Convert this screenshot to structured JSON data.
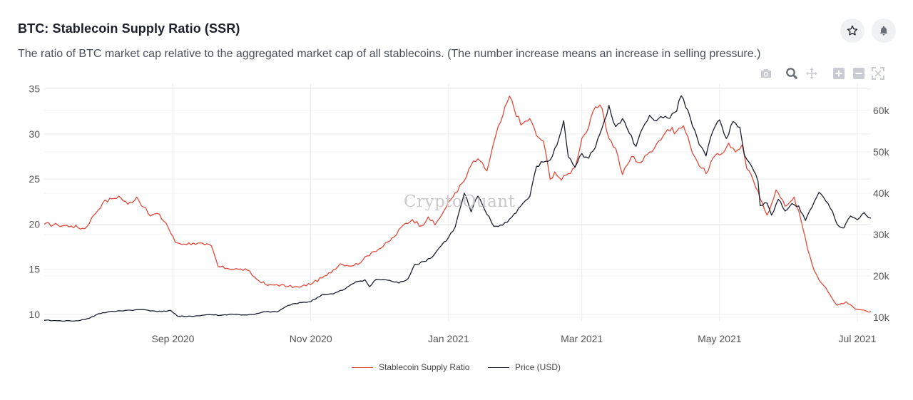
{
  "header": {
    "title": "BTC: Stablecoin Supply Ratio (SSR)",
    "subtitle": "The ratio of BTC market cap relative to the aggregated market cap of all stablecoins. (The number increase means an increase in selling pressure.)"
  },
  "watermark": "CryptoQuant",
  "icons": {
    "favorite": "star-icon",
    "alert": "bell-icon",
    "modebar": [
      "camera-icon",
      "zoom-icon",
      "pan-icon",
      "zoom-in-icon",
      "zoom-out-icon",
      "autoscale-icon"
    ]
  },
  "colors": {
    "ssr": "#e2493a",
    "price": "#1b1f2e",
    "grid": "#ececec",
    "modebar_inactive": "#c9ccd2",
    "modebar_active": "#6b6f78"
  },
  "chart_data": {
    "type": "line",
    "x_ticks": [
      {
        "date": "2020-09-01",
        "label": "Sep 2020"
      },
      {
        "date": "2020-11-01",
        "label": "Nov 2020"
      },
      {
        "date": "2021-01-01",
        "label": "Jan 2021"
      },
      {
        "date": "2021-03-01",
        "label": "Mar 2021"
      },
      {
        "date": "2021-05-01",
        "label": "May 2021"
      },
      {
        "date": "2021-07-01",
        "label": "Jul 2021"
      }
    ],
    "xlim": [
      "2020-07-06",
      "2021-07-07"
    ],
    "y_left": {
      "range": [
        9.2,
        35.6
      ],
      "ticks": [
        10,
        15,
        20,
        25,
        30,
        35
      ],
      "tick_labels": [
        "10",
        "15",
        "20",
        "25",
        "30",
        "35"
      ]
    },
    "y_right": {
      "range": [
        9000,
        66500
      ],
      "ticks": [
        10000,
        20000,
        30000,
        40000,
        50000,
        60000
      ],
      "tick_labels": [
        "10k",
        "20k",
        "30k",
        "40k",
        "50k",
        "60k"
      ]
    },
    "grid": true,
    "legend_position": "bottom-center",
    "series": [
      {
        "name": "Stablecoin Supply Ratio",
        "axis": "left",
        "points": [
          [
            "2020-07-06",
            20.0
          ],
          [
            "2020-07-12",
            19.9
          ],
          [
            "2020-07-18",
            19.8
          ],
          [
            "2020-07-24",
            19.5
          ],
          [
            "2020-07-28",
            21.0
          ],
          [
            "2020-08-01",
            22.4
          ],
          [
            "2020-08-05",
            22.8
          ],
          [
            "2020-08-08",
            23.1
          ],
          [
            "2020-08-12",
            22.2
          ],
          [
            "2020-08-16",
            23.0
          ],
          [
            "2020-08-19",
            21.9
          ],
          [
            "2020-08-22",
            20.9
          ],
          [
            "2020-08-25",
            21.2
          ],
          [
            "2020-08-29",
            20.1
          ],
          [
            "2020-09-02",
            18.0
          ],
          [
            "2020-09-06",
            17.8
          ],
          [
            "2020-09-10",
            17.9
          ],
          [
            "2020-09-15",
            17.7
          ],
          [
            "2020-09-18",
            17.6
          ],
          [
            "2020-09-21",
            15.3
          ],
          [
            "2020-09-25",
            15.1
          ],
          [
            "2020-09-30",
            15.0
          ],
          [
            "2020-10-04",
            14.9
          ],
          [
            "2020-10-08",
            13.9
          ],
          [
            "2020-10-13",
            13.2
          ],
          [
            "2020-10-17",
            13.3
          ],
          [
            "2020-10-22",
            13.1
          ],
          [
            "2020-10-27",
            13.0
          ],
          [
            "2020-11-02",
            13.5
          ],
          [
            "2020-11-08",
            14.3
          ],
          [
            "2020-11-14",
            15.6
          ],
          [
            "2020-11-20",
            15.4
          ],
          [
            "2020-11-24",
            16.0
          ],
          [
            "2020-11-28",
            16.9
          ],
          [
            "2020-12-03",
            17.5
          ],
          [
            "2020-12-08",
            18.6
          ],
          [
            "2020-12-12",
            19.9
          ],
          [
            "2020-12-16",
            20.5
          ],
          [
            "2020-12-20",
            19.8
          ],
          [
            "2020-12-23",
            20.8
          ],
          [
            "2020-12-26",
            19.9
          ],
          [
            "2020-12-30",
            21.5
          ],
          [
            "2021-01-04",
            23.5
          ],
          [
            "2021-01-08",
            24.8
          ],
          [
            "2021-01-12",
            27.0
          ],
          [
            "2021-01-15",
            27.0
          ],
          [
            "2021-01-18",
            25.9
          ],
          [
            "2021-01-22",
            29.9
          ],
          [
            "2021-01-25",
            32.0
          ],
          [
            "2021-01-28",
            34.2
          ],
          [
            "2021-02-02",
            31.0
          ],
          [
            "2021-02-06",
            31.7
          ],
          [
            "2021-02-09",
            29.8
          ],
          [
            "2021-02-12",
            29.2
          ],
          [
            "2021-02-15",
            25.0
          ],
          [
            "2021-02-17",
            25.8
          ],
          [
            "2021-02-20",
            24.9
          ],
          [
            "2021-02-23",
            25.6
          ],
          [
            "2021-02-26",
            26.3
          ],
          [
            "2021-03-01",
            29.5
          ],
          [
            "2021-03-04",
            30.7
          ],
          [
            "2021-03-07",
            33.0
          ],
          [
            "2021-03-10",
            32.8
          ],
          [
            "2021-03-13",
            29.5
          ],
          [
            "2021-03-16",
            28.4
          ],
          [
            "2021-03-19",
            25.5
          ],
          [
            "2021-03-23",
            27.5
          ],
          [
            "2021-03-27",
            26.8
          ],
          [
            "2021-03-31",
            28.0
          ],
          [
            "2021-04-04",
            29.2
          ],
          [
            "2021-04-08",
            30.5
          ],
          [
            "2021-04-12",
            30.3
          ],
          [
            "2021-04-15",
            30.9
          ],
          [
            "2021-04-18",
            28.7
          ],
          [
            "2021-04-21",
            27.0
          ],
          [
            "2021-04-25",
            25.6
          ],
          [
            "2021-04-28",
            27.3
          ],
          [
            "2021-05-02",
            27.8
          ],
          [
            "2021-05-05",
            29.0
          ],
          [
            "2021-05-08",
            28.0
          ],
          [
            "2021-05-11",
            28.8
          ],
          [
            "2021-05-13",
            26.2
          ],
          [
            "2021-05-16",
            24.8
          ],
          [
            "2021-05-19",
            22.8
          ],
          [
            "2021-05-22",
            21.0
          ],
          [
            "2021-05-26",
            23.8
          ],
          [
            "2021-05-30",
            22.0
          ],
          [
            "2021-06-03",
            23.0
          ],
          [
            "2021-06-06",
            20.5
          ],
          [
            "2021-06-09",
            17.2
          ],
          [
            "2021-06-12",
            14.8
          ],
          [
            "2021-06-15",
            13.5
          ],
          [
            "2021-06-18",
            12.5
          ],
          [
            "2021-06-22",
            11.0
          ],
          [
            "2021-06-26",
            11.4
          ],
          [
            "2021-06-30",
            10.6
          ],
          [
            "2021-07-03",
            10.5
          ],
          [
            "2021-07-07",
            10.3
          ]
        ]
      },
      {
        "name": "Price (USD)",
        "axis": "right",
        "points": [
          [
            "2020-07-06",
            9300
          ],
          [
            "2020-07-12",
            9200
          ],
          [
            "2020-07-18",
            9150
          ],
          [
            "2020-07-22",
            9300
          ],
          [
            "2020-07-26",
            9800
          ],
          [
            "2020-07-30",
            10900
          ],
          [
            "2020-08-03",
            11300
          ],
          [
            "2020-08-07",
            11500
          ],
          [
            "2020-08-11",
            11700
          ],
          [
            "2020-08-15",
            11800
          ],
          [
            "2020-08-19",
            11900
          ],
          [
            "2020-08-23",
            11600
          ],
          [
            "2020-08-27",
            11400
          ],
          [
            "2020-08-31",
            11700
          ],
          [
            "2020-09-03",
            10300
          ],
          [
            "2020-09-07",
            10200
          ],
          [
            "2020-09-12",
            10400
          ],
          [
            "2020-09-17",
            10700
          ],
          [
            "2020-09-22",
            10500
          ],
          [
            "2020-09-27",
            10800
          ],
          [
            "2020-10-02",
            10600
          ],
          [
            "2020-10-07",
            10700
          ],
          [
            "2020-10-12",
            11400
          ],
          [
            "2020-10-17",
            11300
          ],
          [
            "2020-10-22",
            12900
          ],
          [
            "2020-10-27",
            13600
          ],
          [
            "2020-11-01",
            13800
          ],
          [
            "2020-11-06",
            15500
          ],
          [
            "2020-11-11",
            15700
          ],
          [
            "2020-11-16",
            16800
          ],
          [
            "2020-11-21",
            18600
          ],
          [
            "2020-11-25",
            19100
          ],
          [
            "2020-11-27",
            17400
          ],
          [
            "2020-11-30",
            19200
          ],
          [
            "2020-12-05",
            19000
          ],
          [
            "2020-12-10",
            18300
          ],
          [
            "2020-12-14",
            19300
          ],
          [
            "2020-12-17",
            22800
          ],
          [
            "2020-12-21",
            23500
          ],
          [
            "2020-12-25",
            24700
          ],
          [
            "2020-12-28",
            26900
          ],
          [
            "2021-01-01",
            29300
          ],
          [
            "2021-01-04",
            31900
          ],
          [
            "2021-01-08",
            40000
          ],
          [
            "2021-01-11",
            35500
          ],
          [
            "2021-01-14",
            39300
          ],
          [
            "2021-01-17",
            36000
          ],
          [
            "2021-01-21",
            32000
          ],
          [
            "2021-01-25",
            32300
          ],
          [
            "2021-01-29",
            34200
          ],
          [
            "2021-02-03",
            37600
          ],
          [
            "2021-02-06",
            39200
          ],
          [
            "2021-02-09",
            46500
          ],
          [
            "2021-02-12",
            47500
          ],
          [
            "2021-02-15",
            48000
          ],
          [
            "2021-02-18",
            51600
          ],
          [
            "2021-02-21",
            57500
          ],
          [
            "2021-02-23",
            48800
          ],
          [
            "2021-02-26",
            46300
          ],
          [
            "2021-03-01",
            49600
          ],
          [
            "2021-03-04",
            48400
          ],
          [
            "2021-03-07",
            51000
          ],
          [
            "2021-03-10",
            55800
          ],
          [
            "2021-03-13",
            61200
          ],
          [
            "2021-03-16",
            56100
          ],
          [
            "2021-03-19",
            58000
          ],
          [
            "2021-03-22",
            54500
          ],
          [
            "2021-03-25",
            51300
          ],
          [
            "2021-03-28",
            55800
          ],
          [
            "2021-03-31",
            58800
          ],
          [
            "2021-04-03",
            57500
          ],
          [
            "2021-04-06",
            58200
          ],
          [
            "2021-04-09",
            58100
          ],
          [
            "2021-04-12",
            59800
          ],
          [
            "2021-04-14",
            63500
          ],
          [
            "2021-04-17",
            60000
          ],
          [
            "2021-04-19",
            56200
          ],
          [
            "2021-04-22",
            51700
          ],
          [
            "2021-04-25",
            49000
          ],
          [
            "2021-04-28",
            54900
          ],
          [
            "2021-05-01",
            57700
          ],
          [
            "2021-05-04",
            53200
          ],
          [
            "2021-05-07",
            57300
          ],
          [
            "2021-05-10",
            55900
          ],
          [
            "2021-05-12",
            49200
          ],
          [
            "2021-05-15",
            46700
          ],
          [
            "2021-05-18",
            42900
          ],
          [
            "2021-05-19",
            37000
          ],
          [
            "2021-05-22",
            37600
          ],
          [
            "2021-05-24",
            34700
          ],
          [
            "2021-05-27",
            38500
          ],
          [
            "2021-05-30",
            35700
          ],
          [
            "2021-06-02",
            37500
          ],
          [
            "2021-06-05",
            36900
          ],
          [
            "2021-06-08",
            33400
          ],
          [
            "2021-06-11",
            36700
          ],
          [
            "2021-06-14",
            40200
          ],
          [
            "2021-06-17",
            38100
          ],
          [
            "2021-06-20",
            35600
          ],
          [
            "2021-06-22",
            32500
          ],
          [
            "2021-06-25",
            31600
          ],
          [
            "2021-06-28",
            34500
          ],
          [
            "2021-07-01",
            33600
          ],
          [
            "2021-07-04",
            35300
          ],
          [
            "2021-07-07",
            34000
          ]
        ]
      }
    ]
  }
}
